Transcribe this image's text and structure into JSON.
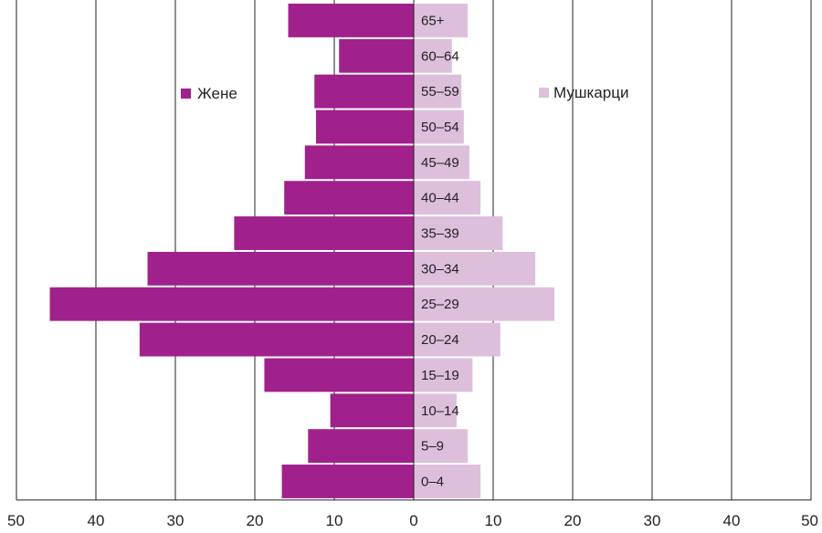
{
  "chart_data": {
    "type": "bar",
    "orientation": "horizontal-population-pyramid",
    "categories": [
      "65+",
      "60–64",
      "55–59",
      "50–54",
      "45–49",
      "40–44",
      "35–39",
      "30–34",
      "25–29",
      "20–24",
      "15–19",
      "10–14",
      "5–9",
      "0–4"
    ],
    "series": [
      {
        "name": "Жене",
        "side": "left",
        "color": "#a0208c",
        "values": [
          15.8,
          9.4,
          12.5,
          12.3,
          13.7,
          16.3,
          22.6,
          33.5,
          45.8,
          34.5,
          18.8,
          10.5,
          13.3,
          16.6
        ]
      },
      {
        "name": "Мушкарци",
        "side": "right",
        "color": "#ddbfdc",
        "values": [
          6.8,
          4.8,
          6.0,
          6.3,
          7.0,
          8.4,
          11.2,
          15.3,
          17.7,
          10.9,
          7.4,
          5.4,
          6.8,
          8.4
        ]
      }
    ],
    "x_ticks": [
      "50",
      "40",
      "30",
      "20",
      "10",
      "0",
      "10",
      "20",
      "30",
      "40",
      "50"
    ],
    "xlim": [
      -50,
      50
    ],
    "grid": "vertical",
    "legend": "inside-top"
  }
}
